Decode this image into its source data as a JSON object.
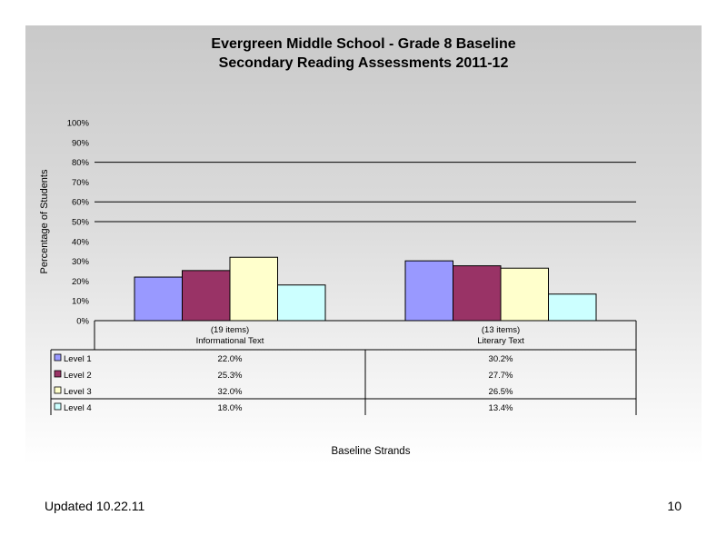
{
  "chart_data": {
    "type": "bar",
    "title_line_1": "Evergreen Middle School - Grade 8 Baseline",
    "title_line_2": "Secondary Reading Assessments 2011-12",
    "ylabel": "Percentage of Students",
    "xlabel": "Baseline Strands",
    "ylim": [
      0,
      100
    ],
    "yticks": [
      "0%",
      "10%",
      "20%",
      "30%",
      "40%",
      "50%",
      "60%",
      "70%",
      "80%",
      "90%",
      "100%"
    ],
    "gridlines": [
      50,
      60,
      80
    ],
    "categories": [
      {
        "line1": "(19 items)",
        "line2": "Informational Text"
      },
      {
        "line1": "(13 items)",
        "line2": "Literary Text"
      }
    ],
    "series": [
      {
        "name": "Level 1",
        "color": "#9999ff",
        "values": [
          22.0,
          30.2
        ],
        "labels": [
          "22.0%",
          "30.2%"
        ]
      },
      {
        "name": "Level 2",
        "color": "#993366",
        "values": [
          25.3,
          27.7
        ],
        "labels": [
          "25.3%",
          "27.7%"
        ]
      },
      {
        "name": "Level 3",
        "color": "#ffffcc",
        "values": [
          32.0,
          26.5
        ],
        "labels": [
          "32.0%",
          "26.5%"
        ]
      },
      {
        "name": "Level 4",
        "color": "#ccffff",
        "values": [
          18.0,
          13.4
        ],
        "labels": [
          "18.0%",
          "13.4%"
        ]
      }
    ],
    "legend": "data-table"
  },
  "footer": {
    "updated": "Updated  10.22.11",
    "page_number": "10"
  }
}
